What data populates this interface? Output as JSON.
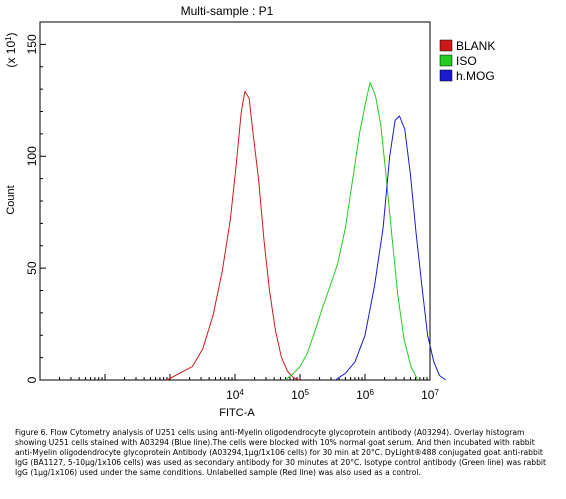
{
  "chart_data": {
    "type": "line",
    "title": "Multi-sample : P1",
    "xlabel": "FITC-A",
    "ylabel": "Count",
    "y_multiplier_label": "(x 10^1)",
    "x_scale": "log",
    "xlim": [
      10,
      10000000
    ],
    "ylim": [
      0,
      160
    ],
    "x_tick_labels": [
      {
        "base": "10",
        "exp": "4",
        "value": 10000
      },
      {
        "base": "10",
        "exp": "5",
        "value": 100000
      },
      {
        "base": "10",
        "exp": "6",
        "value": 1000000
      },
      {
        "base": "10",
        "exp": "7",
        "value": 10000000
      }
    ],
    "y_ticks": [
      0,
      50,
      100,
      150
    ],
    "legend_position": "top-right",
    "series": [
      {
        "name": "BLANK",
        "color": "#cc1a1a",
        "x": [
          900,
          1400,
          2200,
          3200,
          4600,
          6400,
          8500,
          10500,
          12500,
          14200,
          16500,
          19000,
          23000,
          28000,
          34000,
          42000,
          52000,
          64000,
          80000,
          98000
        ],
        "y": [
          0,
          3,
          6,
          14,
          29,
          49,
          72,
          97,
          120,
          129,
          126,
          110,
          90,
          62,
          40,
          22,
          10,
          4,
          1,
          0
        ]
      },
      {
        "name": "ISO",
        "color": "#22cc22",
        "x": [
          60000,
          80000,
          100000,
          130000,
          170000,
          220000,
          290000,
          380000,
          500000,
          650000,
          820000,
          1020000,
          1200000,
          1450000,
          1750000,
          2100000,
          2600000,
          3200000,
          4000000,
          5100000,
          6500000
        ],
        "y": [
          0,
          3,
          6,
          12,
          22,
          32,
          42,
          52,
          68,
          90,
          110,
          124,
          133,
          127,
          114,
          92,
          64,
          38,
          18,
          6,
          0
        ]
      },
      {
        "name": "h.MOG",
        "color": "#1a1acc",
        "x": [
          350000,
          500000,
          700000,
          1000000,
          1400000,
          1900000,
          2400000,
          2900000,
          3400000,
          4100000,
          5000000,
          6100000,
          7500000,
          9200000,
          11500000,
          14000000,
          17500000
        ],
        "y": [
          0,
          3,
          8,
          20,
          42,
          68,
          100,
          116,
          118,
          112,
          92,
          66,
          42,
          20,
          8,
          2,
          0
        ]
      }
    ]
  },
  "caption": "Figure 6. Flow Cytometry analysis of U251 cells using anti-Myelin oligodendrocyte glycoprotein antibody (A03294). Overlay histogram showing U251 cells stained with A03294 (Blue line).The cells were blocked with 10% normal goat serum. And then incubated with rabbit anti-Myelin oligodendrocyte glycoprotein Antibody (A03294,1µg/1x106 cells) for 30 min at 20°C. DyLight®488 conjugated goat anti-rabbit IgG (BA1127, 5-10µg/1x106 cells) was used as secondary antibody for 30 minutes at 20°C. Isotype control antibody (Green line) was rabbit IgG (1µg/1x106) used under the same conditions. Unlabelled sample (Red line) was also used as a control."
}
